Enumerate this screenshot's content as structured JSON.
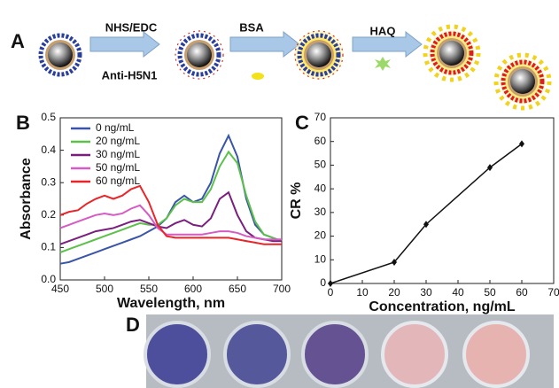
{
  "diagram": {
    "label": "A",
    "steps": [
      "NHS/EDC",
      "BSA",
      "HAQ"
    ],
    "sublabel": "Anti-H5N1"
  },
  "photo": {
    "label": "D"
  },
  "chart_data": [
    {
      "type": "line",
      "label": "B",
      "x_label": "Wavelength, nm",
      "y_label": "Absorbance",
      "x": [
        450,
        460,
        470,
        480,
        490,
        500,
        510,
        520,
        530,
        540,
        550,
        560,
        570,
        580,
        590,
        600,
        610,
        620,
        630,
        640,
        650,
        660,
        670,
        680,
        690,
        700
      ],
      "series": [
        {
          "name": "0 ng/mL",
          "color": "#3a55a8",
          "values": [
            0.05,
            0.055,
            0.065,
            0.075,
            0.085,
            0.095,
            0.105,
            0.115,
            0.125,
            0.135,
            0.15,
            0.165,
            0.19,
            0.24,
            0.26,
            0.24,
            0.25,
            0.3,
            0.39,
            0.445,
            0.38,
            0.25,
            0.17,
            0.14,
            0.13,
            0.12
          ]
        },
        {
          "name": "20 ng/mL",
          "color": "#5cc04a",
          "values": [
            0.085,
            0.095,
            0.105,
            0.115,
            0.125,
            0.135,
            0.145,
            0.155,
            0.165,
            0.175,
            0.17,
            0.17,
            0.19,
            0.23,
            0.25,
            0.24,
            0.24,
            0.28,
            0.35,
            0.395,
            0.36,
            0.26,
            0.18,
            0.14,
            0.13,
            0.12
          ]
        },
        {
          "name": "30 ng/mL",
          "color": "#7a1f7e",
          "values": [
            0.11,
            0.12,
            0.13,
            0.14,
            0.15,
            0.155,
            0.16,
            0.17,
            0.18,
            0.185,
            0.175,
            0.165,
            0.16,
            0.175,
            0.185,
            0.17,
            0.165,
            0.19,
            0.25,
            0.27,
            0.2,
            0.15,
            0.13,
            0.125,
            0.12,
            0.12
          ]
        },
        {
          "name": "50 ng/mL",
          "color": "#d65bc2",
          "values": [
            0.16,
            0.17,
            0.18,
            0.19,
            0.2,
            0.205,
            0.2,
            0.205,
            0.22,
            0.23,
            0.2,
            0.16,
            0.14,
            0.14,
            0.14,
            0.14,
            0.14,
            0.145,
            0.15,
            0.15,
            0.145,
            0.135,
            0.13,
            0.125,
            0.125,
            0.125
          ]
        },
        {
          "name": "60 ng/mL",
          "color": "#e8262a",
          "values": [
            0.2,
            0.21,
            0.215,
            0.235,
            0.25,
            0.26,
            0.25,
            0.26,
            0.28,
            0.29,
            0.24,
            0.17,
            0.135,
            0.13,
            0.13,
            0.13,
            0.13,
            0.13,
            0.13,
            0.13,
            0.125,
            0.12,
            0.115,
            0.11,
            0.11,
            0.11
          ]
        }
      ],
      "xlim": [
        450,
        700
      ],
      "xticks": [
        450,
        500,
        550,
        600,
        650,
        700
      ],
      "ylim": [
        0,
        0.5
      ],
      "yticks": [
        {
          "value": 0,
          "label": "0.0"
        },
        0.1,
        0.2,
        0.3,
        0.4,
        0.5
      ],
      "legend": "upper left"
    },
    {
      "type": "line",
      "label": "C",
      "x_label": "Concentration, ng/mL",
      "y_label": "CR %",
      "x": [
        0,
        20,
        30,
        50,
        60
      ],
      "values": [
        0,
        9,
        25,
        49,
        59
      ],
      "color": "#111111",
      "markers": true,
      "xlim": [
        0,
        70
      ],
      "xticks": [
        0,
        10,
        20,
        30,
        40,
        50,
        60,
        70
      ],
      "ylim": [
        0,
        70
      ],
      "yticks": [
        0,
        10,
        20,
        30,
        40,
        50,
        60,
        70
      ]
    }
  ]
}
